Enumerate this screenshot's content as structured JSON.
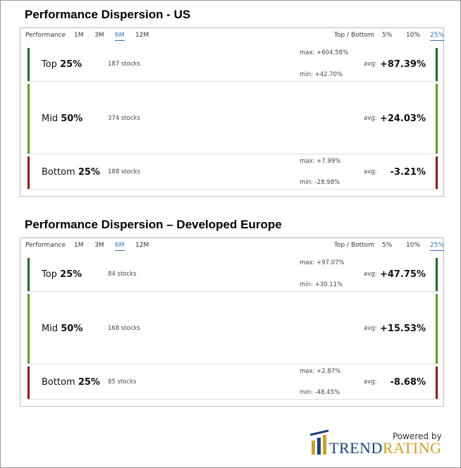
{
  "panels": [
    {
      "title": "Performance Dispersion - US",
      "tabs": {
        "label": "Performance",
        "periods": [
          "1M",
          "3M",
          "6M",
          "12M"
        ],
        "group_label": "Top / Bottom",
        "percentiles": [
          "5%",
          "10%",
          "25%"
        ]
      },
      "rows": [
        {
          "name": "Top",
          "pct": "25%",
          "stocks": "187 stocks",
          "max": "max: +604.58%",
          "min": "min: +42.70%",
          "avg_label": "avg:",
          "avg": "+87.39%"
        },
        {
          "name": "Mid",
          "pct": "50%",
          "stocks": "374 stocks",
          "avg_label": "avg:",
          "avg": "+24.03%"
        },
        {
          "name": "Bottom",
          "pct": "25%",
          "stocks": "188 stocks",
          "max": "max: +7.99%",
          "min": "min: -28.98%",
          "avg_label": "avg:",
          "avg": "-3.21%"
        }
      ]
    },
    {
      "title": "Performance Dispersion – Developed Europe",
      "tabs": {
        "label": "Performance",
        "periods": [
          "1M",
          "3M",
          "6M",
          "12M"
        ],
        "group_label": "Top / Bottom",
        "percentiles": [
          "5%",
          "10%",
          "25%"
        ]
      },
      "rows": [
        {
          "name": "Top",
          "pct": "25%",
          "stocks": "84 stocks",
          "max": "max: +97.07%",
          "min": "min: +30.11%",
          "avg_label": "avg:",
          "avg": "+47.75%"
        },
        {
          "name": "Mid",
          "pct": "50%",
          "stocks": "168 stocks",
          "avg_label": "avg:",
          "avg": "+15.53%"
        },
        {
          "name": "Bottom",
          "pct": "25%",
          "stocks": "85 stocks",
          "max": "max: +2.87%",
          "min": "min: -48.45%",
          "avg_label": "avg:",
          "avg": "-8.68%"
        }
      ]
    }
  ],
  "footer": {
    "powered_by": "Powered by",
    "brand_a": "TREND",
    "brand_b": "RATING"
  }
}
